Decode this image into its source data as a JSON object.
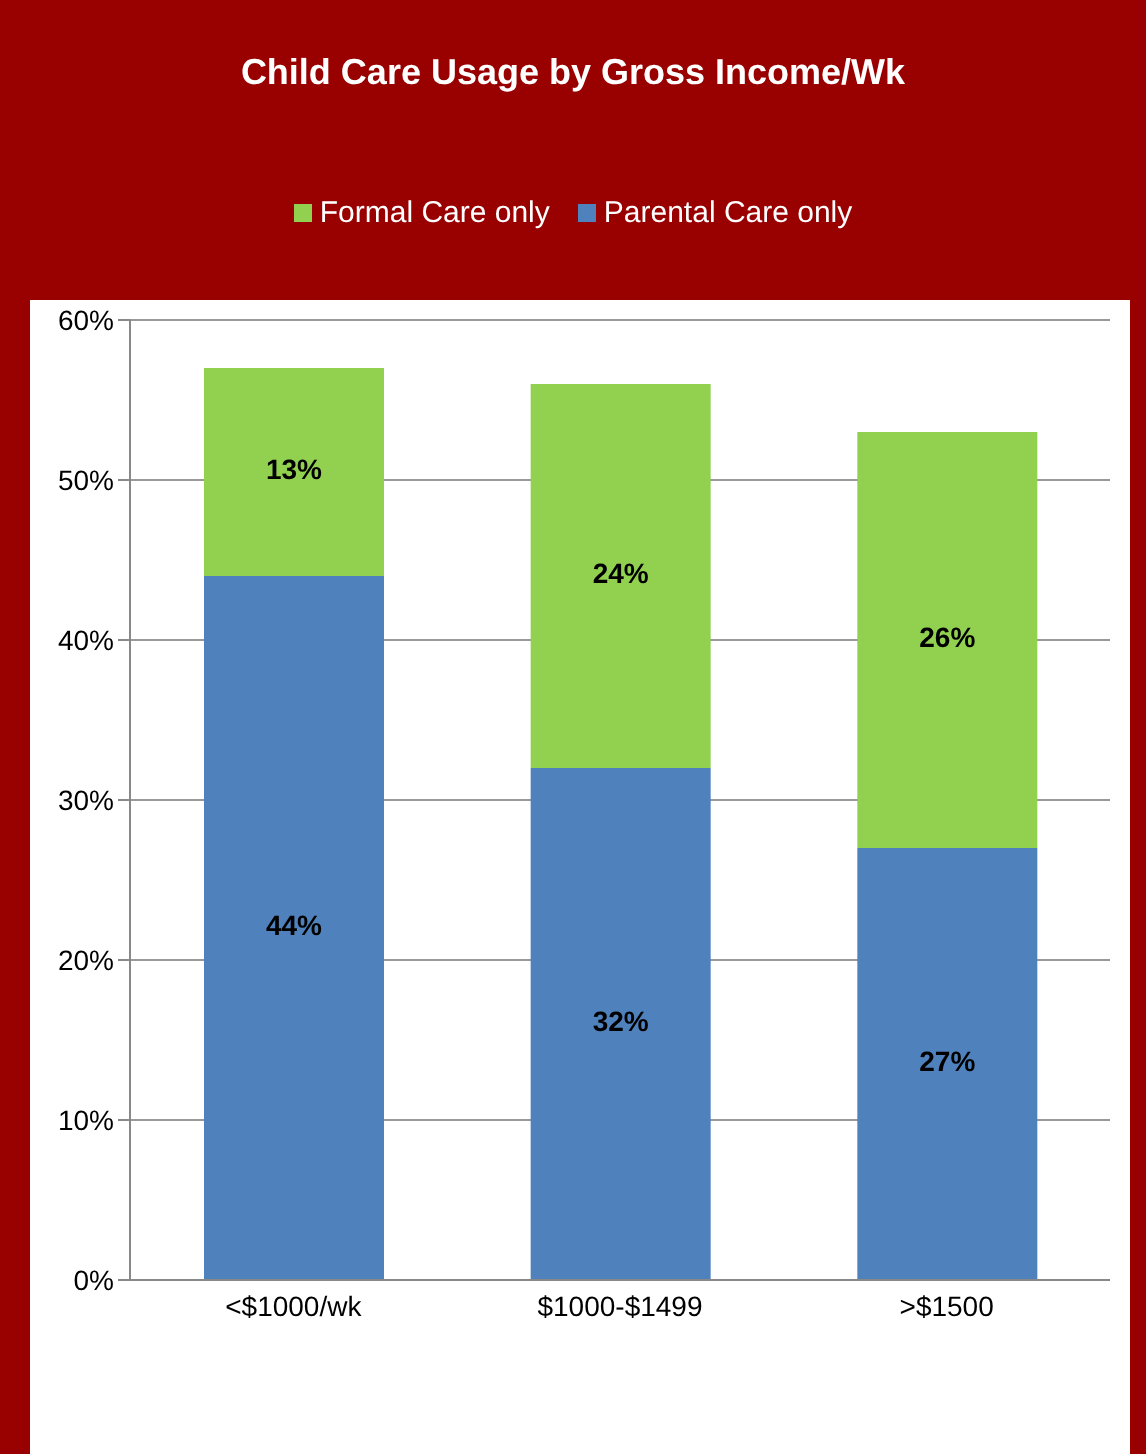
{
  "chart_data": {
    "type": "bar",
    "title": "Child Care Usage by Gross Income/Wk",
    "categories": [
      "<$1000/wk",
      "$1000-$1499",
      ">$1500"
    ],
    "stacked": true,
    "series": [
      {
        "name": "Parental Care only",
        "color": "#4f81bd",
        "values": [
          44,
          32,
          27
        ],
        "value_labels": [
          "44%",
          "32%",
          "27%"
        ]
      },
      {
        "name": "Formal Care only",
        "color": "#92d050",
        "values": [
          13,
          24,
          26
        ],
        "value_labels": [
          "13%",
          "24%",
          "26%"
        ]
      }
    ],
    "ylim": [
      0,
      60
    ],
    "yticks": [
      {
        "value": 0,
        "label": "0%"
      },
      {
        "value": 10,
        "label": "10%"
      },
      {
        "value": 20,
        "label": "20%"
      },
      {
        "value": 30,
        "label": "30%"
      },
      {
        "value": 40,
        "label": "40%"
      },
      {
        "value": 50,
        "label": "50%"
      },
      {
        "value": 60,
        "label": "60%"
      }
    ],
    "grid": "y",
    "legend": "top"
  }
}
